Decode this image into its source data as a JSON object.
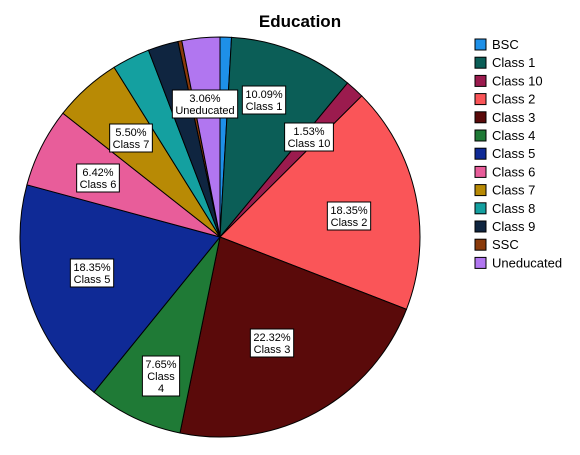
{
  "chart_data": {
    "type": "pie",
    "title": "Education",
    "legend_position": "right",
    "slices": [
      {
        "label": "BSC",
        "value": 0.92,
        "color": "#1E90E8",
        "data_label": ""
      },
      {
        "label": "Class 1",
        "value": 10.09,
        "color": "#0B5E57",
        "data_label": "10.09%|Class 1"
      },
      {
        "label": "Class 10",
        "value": 1.53,
        "color": "#9B1B4E",
        "data_label": "1.53%|Class 10"
      },
      {
        "label": "Class 2",
        "value": 18.35,
        "color": "#FA5558",
        "data_label": "18.35%|Class 2"
      },
      {
        "label": "Class 3",
        "value": 22.32,
        "color": "#5A0A0A",
        "data_label": "22.32%|Class 3"
      },
      {
        "label": "Class 4",
        "value": 7.65,
        "color": "#1F7A36",
        "data_label": "7.65%|Class|4"
      },
      {
        "label": "Class 5",
        "value": 18.35,
        "color": "#0F2A96",
        "data_label": "18.35%|Class 5"
      },
      {
        "label": "Class 6",
        "value": 6.42,
        "color": "#E85D9A",
        "data_label": "6.42%|Class 6"
      },
      {
        "label": "Class 7",
        "value": 5.5,
        "color": "#B88A05",
        "data_label": "5.50%|Class 7"
      },
      {
        "label": "Class 8",
        "value": 3.06,
        "color": "#14A0A0",
        "data_label": ""
      },
      {
        "label": "Class 9",
        "value": 2.45,
        "color": "#0F2540",
        "data_label": ""
      },
      {
        "label": "SSC",
        "value": 0.31,
        "color": "#8A3A0A",
        "data_label": ""
      },
      {
        "label": "Uneducated",
        "value": 3.06,
        "color": "#B176F0",
        "data_label": "3.06%|Uneducated"
      }
    ]
  }
}
